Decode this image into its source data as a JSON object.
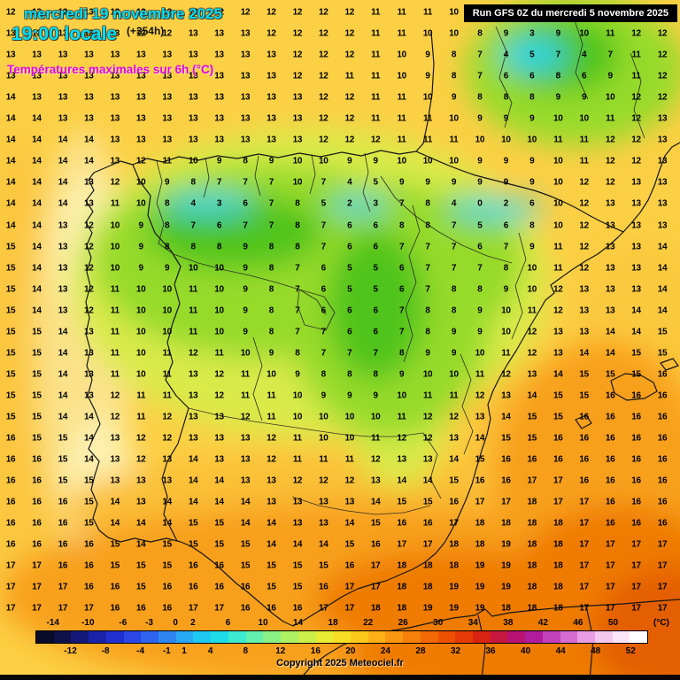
{
  "header": {
    "date": "mercredi 19 novembre 2025",
    "time": "19:00 locale",
    "offset": "(+354h)",
    "subtitle": "Températures maximales sur 6h (°C)"
  },
  "run_box": {
    "label": "Run GFS 0Z du mercredi 5 novembre 2025"
  },
  "copyright": "Copyright 2025 Meteociel.fr",
  "scale": {
    "unit": "(°C)",
    "min": -16,
    "max": 54,
    "top_labels": [
      -14,
      -10,
      -6,
      -3,
      0,
      2,
      6,
      10,
      14,
      18,
      22,
      26,
      30,
      34,
      38,
      42,
      46,
      50
    ],
    "bottom_labels": [
      -12,
      -8,
      -4,
      -1,
      1,
      4,
      8,
      12,
      16,
      20,
      24,
      28,
      32,
      36,
      40,
      44,
      48,
      52
    ],
    "colors": [
      "#0b0b2a",
      "#10104a",
      "#141878",
      "#1a22aa",
      "#2030d0",
      "#2a46e4",
      "#2f64ee",
      "#2f86f2",
      "#28a8f2",
      "#1fc8f0",
      "#1fdde6",
      "#3cead0",
      "#62f0ac",
      "#8af284",
      "#acf262",
      "#ccf04a",
      "#e8ec34",
      "#f6de24",
      "#fbc81c",
      "#fcb016",
      "#f99810",
      "#f68009",
      "#f26805",
      "#ed5003",
      "#e63a06",
      "#d92414",
      "#c91840",
      "#b81272",
      "#b11c9c",
      "#c240ba",
      "#d66cd0",
      "#e89ce2",
      "#f4c8ee",
      "#fbe4f8",
      "#ffffff"
    ]
  },
  "colors": {
    "base_yellow": "#fcd045",
    "yellow_green": "#d9ea4a",
    "green": "#96da2c",
    "deep_green": "#50c41e",
    "cyan": "#2ad4e4",
    "cream": "#fbe28a",
    "pale_cream": "#fdf0b0",
    "light_orange": "#fbc038",
    "orange": "#f8a01e",
    "deep_orange": "#ef7b06",
    "red_orange": "#e45f02",
    "header_cyan": "#00e0f8",
    "header_magenta": "#e400e4",
    "run_bg": "#000000",
    "run_fg": "#ffffff"
  },
  "grid": {
    "values": [
      [
        12,
        13,
        13,
        13,
        12,
        12,
        12,
        12,
        12,
        12,
        12,
        12,
        12,
        12,
        11,
        11,
        11,
        10,
        10,
        9,
        8,
        9,
        10,
        11,
        12,
        12
      ],
      [
        13,
        13,
        13,
        13,
        13,
        12,
        12,
        13,
        13,
        13,
        12,
        12,
        12,
        12,
        11,
        11,
        10,
        10,
        8,
        9,
        3,
        9,
        10,
        11,
        12,
        12
      ],
      [
        13,
        13,
        13,
        13,
        13,
        13,
        13,
        13,
        13,
        13,
        13,
        12,
        12,
        12,
        11,
        10,
        9,
        8,
        7,
        4,
        5,
        7,
        4,
        7,
        11,
        12
      ],
      [
        13,
        13,
        13,
        13,
        13,
        13,
        13,
        13,
        13,
        13,
        13,
        12,
        12,
        11,
        11,
        10,
        9,
        8,
        7,
        6,
        6,
        8,
        6,
        9,
        11,
        12
      ],
      [
        14,
        13,
        13,
        13,
        13,
        13,
        13,
        13,
        13,
        13,
        13,
        13,
        12,
        12,
        11,
        11,
        10,
        9,
        8,
        8,
        8,
        9,
        9,
        10,
        12,
        12
      ],
      [
        14,
        14,
        13,
        13,
        13,
        13,
        13,
        13,
        13,
        13,
        13,
        13,
        12,
        12,
        11,
        11,
        11,
        10,
        9,
        9,
        9,
        10,
        10,
        11,
        12,
        13
      ],
      [
        14,
        14,
        14,
        14,
        13,
        13,
        13,
        13,
        13,
        13,
        13,
        13,
        12,
        12,
        12,
        11,
        11,
        11,
        10,
        10,
        10,
        11,
        11,
        12,
        12,
        13
      ],
      [
        14,
        14,
        14,
        14,
        13,
        12,
        11,
        10,
        9,
        8,
        9,
        10,
        10,
        9,
        9,
        10,
        10,
        10,
        9,
        9,
        9,
        10,
        11,
        12,
        12,
        13
      ],
      [
        14,
        14,
        14,
        13,
        12,
        10,
        9,
        8,
        7,
        7,
        7,
        10,
        7,
        4,
        5,
        9,
        9,
        9,
        9,
        9,
        9,
        10,
        12,
        12,
        13,
        13
      ],
      [
        14,
        14,
        14,
        13,
        11,
        10,
        8,
        4,
        3,
        6,
        7,
        8,
        5,
        2,
        3,
        7,
        8,
        4,
        0,
        2,
        6,
        10,
        12,
        13,
        13,
        13
      ],
      [
        14,
        14,
        13,
        12,
        10,
        9,
        8,
        7,
        6,
        7,
        7,
        8,
        7,
        6,
        6,
        8,
        8,
        7,
        5,
        6,
        8,
        10,
        12,
        13,
        13,
        13
      ],
      [
        15,
        14,
        13,
        12,
        10,
        9,
        8,
        8,
        8,
        9,
        8,
        8,
        7,
        6,
        6,
        7,
        7,
        7,
        6,
        7,
        9,
        11,
        12,
        13,
        13,
        14
      ],
      [
        15,
        14,
        13,
        12,
        10,
        9,
        9,
        10,
        10,
        9,
        8,
        7,
        6,
        5,
        5,
        6,
        7,
        7,
        7,
        8,
        10,
        11,
        12,
        13,
        13,
        14
      ],
      [
        15,
        14,
        13,
        12,
        11,
        10,
        10,
        11,
        10,
        9,
        8,
        7,
        6,
        5,
        5,
        6,
        7,
        8,
        8,
        9,
        10,
        12,
        13,
        13,
        13,
        14
      ],
      [
        15,
        14,
        13,
        12,
        11,
        10,
        10,
        11,
        10,
        9,
        8,
        7,
        6,
        6,
        6,
        7,
        8,
        8,
        9,
        10,
        11,
        12,
        13,
        13,
        14,
        14
      ],
      [
        15,
        15,
        14,
        13,
        11,
        10,
        10,
        11,
        10,
        9,
        8,
        7,
        7,
        6,
        6,
        7,
        8,
        9,
        9,
        10,
        12,
        13,
        13,
        14,
        14,
        15
      ],
      [
        15,
        15,
        14,
        13,
        11,
        10,
        11,
        12,
        11,
        10,
        9,
        8,
        7,
        7,
        7,
        8,
        9,
        9,
        10,
        11,
        12,
        13,
        14,
        14,
        15,
        15
      ],
      [
        15,
        15,
        14,
        13,
        11,
        10,
        11,
        13,
        12,
        11,
        10,
        9,
        8,
        8,
        8,
        9,
        10,
        10,
        11,
        12,
        13,
        14,
        15,
        15,
        15,
        16
      ],
      [
        15,
        15,
        14,
        13,
        12,
        11,
        11,
        13,
        12,
        11,
        11,
        10,
        9,
        9,
        9,
        10,
        11,
        11,
        12,
        13,
        14,
        15,
        15,
        16,
        16,
        16
      ],
      [
        15,
        15,
        14,
        14,
        12,
        11,
        12,
        13,
        13,
        12,
        11,
        10,
        10,
        10,
        10,
        11,
        12,
        12,
        13,
        14,
        15,
        15,
        16,
        16,
        16,
        16
      ],
      [
        16,
        15,
        15,
        14,
        13,
        12,
        12,
        13,
        13,
        13,
        12,
        11,
        10,
        10,
        11,
        12,
        12,
        13,
        14,
        15,
        15,
        16,
        16,
        16,
        16,
        16
      ],
      [
        16,
        16,
        15,
        14,
        13,
        12,
        13,
        14,
        13,
        13,
        12,
        11,
        11,
        11,
        12,
        13,
        13,
        14,
        15,
        16,
        16,
        16,
        16,
        16,
        16,
        16
      ],
      [
        16,
        16,
        15,
        15,
        13,
        13,
        13,
        14,
        14,
        13,
        13,
        12,
        12,
        12,
        13,
        14,
        14,
        15,
        16,
        16,
        17,
        17,
        16,
        16,
        16,
        16
      ],
      [
        16,
        16,
        16,
        15,
        14,
        13,
        14,
        14,
        14,
        14,
        13,
        13,
        13,
        13,
        14,
        15,
        15,
        16,
        17,
        17,
        18,
        17,
        17,
        16,
        16,
        16
      ],
      [
        16,
        16,
        16,
        15,
        14,
        14,
        14,
        15,
        15,
        14,
        14,
        13,
        13,
        14,
        15,
        16,
        16,
        17,
        18,
        18,
        18,
        18,
        17,
        16,
        16,
        16
      ],
      [
        16,
        16,
        16,
        16,
        15,
        14,
        15,
        15,
        15,
        15,
        14,
        14,
        14,
        15,
        16,
        17,
        17,
        18,
        18,
        19,
        18,
        18,
        17,
        17,
        17,
        17
      ],
      [
        17,
        17,
        16,
        16,
        15,
        15,
        15,
        16,
        16,
        15,
        15,
        15,
        15,
        16,
        17,
        18,
        18,
        18,
        19,
        19,
        18,
        18,
        17,
        17,
        17,
        17
      ],
      [
        17,
        17,
        17,
        16,
        16,
        15,
        16,
        16,
        16,
        16,
        15,
        15,
        16,
        17,
        17,
        18,
        18,
        19,
        19,
        19,
        18,
        18,
        17,
        17,
        17,
        17
      ],
      [
        17,
        17,
        17,
        17,
        16,
        16,
        16,
        17,
        17,
        16,
        16,
        16,
        17,
        17,
        18,
        18,
        19,
        19,
        19,
        18,
        18,
        18,
        17,
        17,
        17,
        17
      ]
    ]
  }
}
